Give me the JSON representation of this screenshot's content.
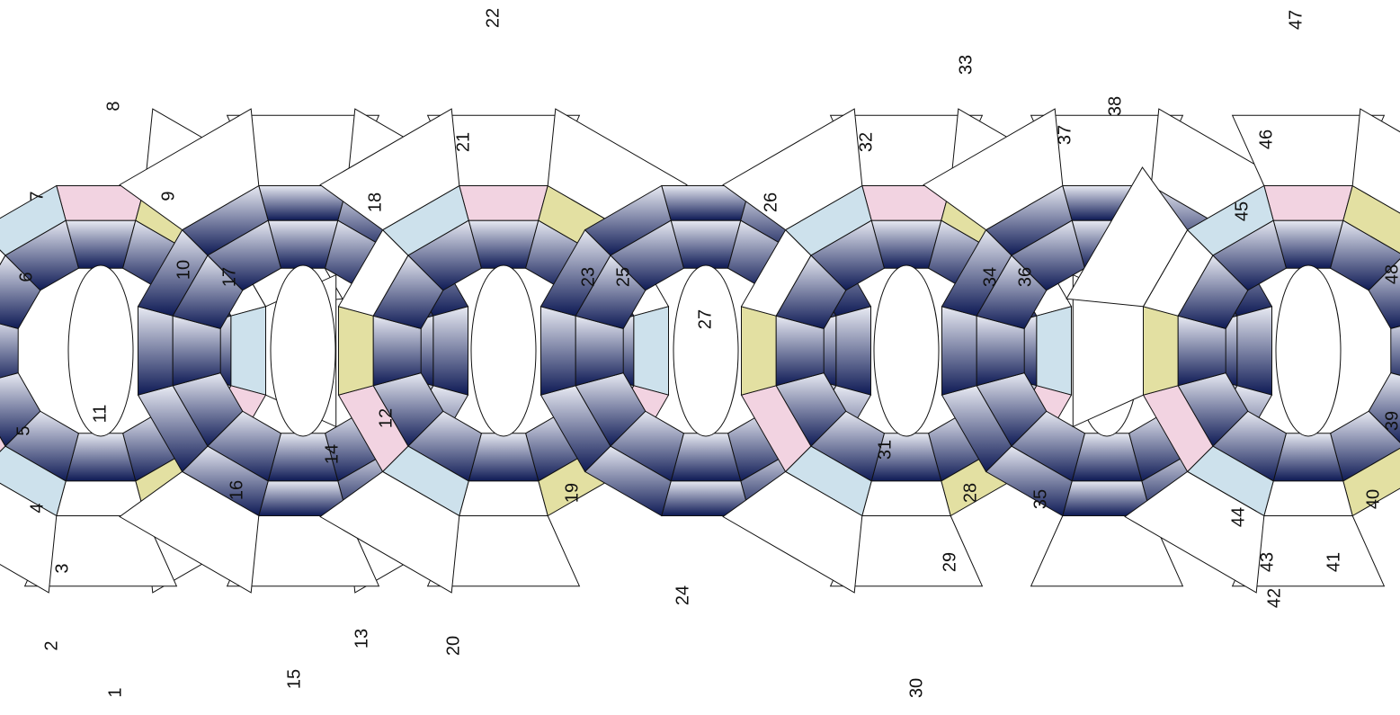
{
  "colors": {
    "blue_light": "#e8eaf3",
    "blue_dark": "#0e1a55",
    "yellow": "#e3e0a2",
    "pink": "#f2d3e1",
    "light_blue": "#cde1ec",
    "brown": "#8c7a52",
    "stroke": "#111111"
  },
  "labels": [
    "1",
    "2",
    "3",
    "4",
    "5",
    "6",
    "7",
    "8",
    "9",
    "10",
    "11",
    "12",
    "13",
    "14",
    "15",
    "16",
    "17",
    "18",
    "19",
    "20",
    "21",
    "22",
    "23",
    "24",
    "25",
    "26",
    "27",
    "28",
    "29",
    "30",
    "31",
    "32",
    "33",
    "34",
    "35",
    "36",
    "37",
    "38",
    "39",
    "40",
    "41",
    "42",
    "43",
    "44",
    "45",
    "46",
    "47",
    "48"
  ]
}
